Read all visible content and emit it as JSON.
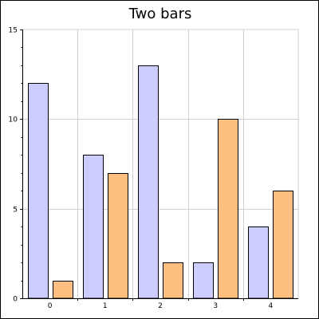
{
  "chart_data": {
    "type": "bar",
    "title": "Two bars",
    "xlabel": "",
    "ylabel": "",
    "categories": [
      "0",
      "1",
      "2",
      "3",
      "4"
    ],
    "series": [
      {
        "values": [
          12,
          8,
          13,
          2,
          4
        ]
      },
      {
        "values": [
          1,
          7,
          2,
          10,
          6
        ]
      }
    ],
    "ylim": [
      0,
      15
    ],
    "yticks": [
      "0",
      "5",
      "10",
      "15"
    ],
    "grid": true,
    "legend": "none",
    "colors": {
      "series": [
        "#ccccff",
        "#ffbf80"
      ],
      "bar_outline": "#000000",
      "grid": "#d0d0d0",
      "axis": "#000000"
    }
  }
}
